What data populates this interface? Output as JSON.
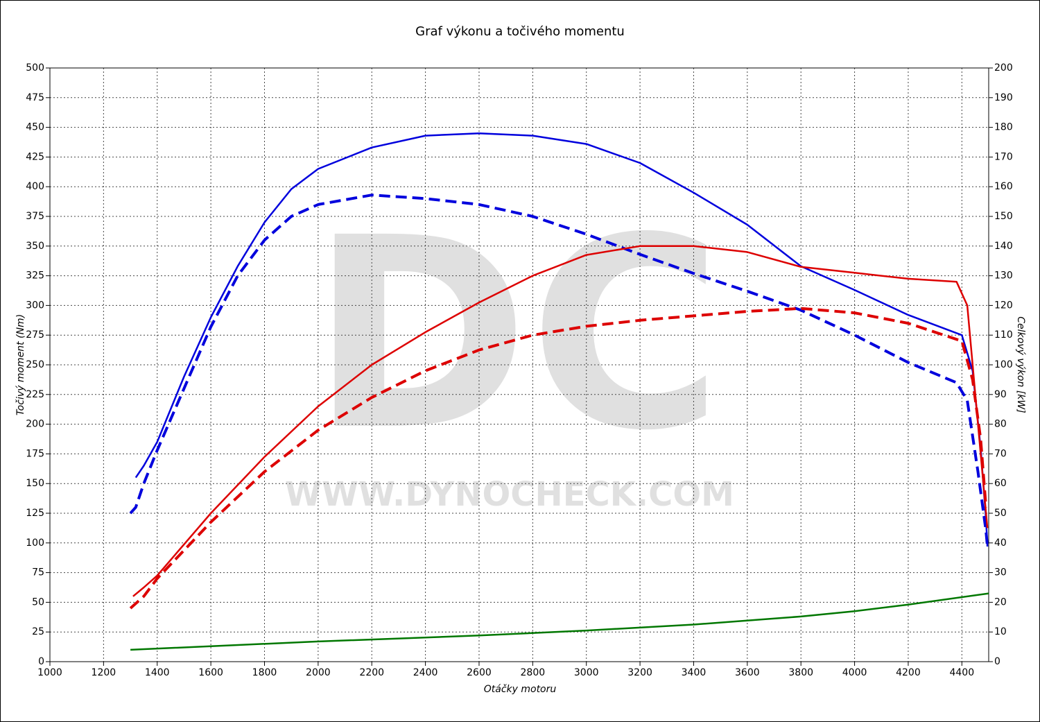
{
  "chart_data": {
    "type": "line",
    "title": "Graf výkonu a točivého momentu",
    "xlabel": "Otáčky motoru",
    "ylabel": "Točivý moment (Nm)",
    "y2label": "Celkový výkon [kW]",
    "watermark": "DC",
    "watermark_url": "WWW.DYNOCHECK.COM",
    "xlim": [
      1000,
      4500
    ],
    "xticks": [
      1000,
      1200,
      1400,
      1600,
      1800,
      2000,
      2200,
      2400,
      2600,
      2800,
      3000,
      3200,
      3400,
      3600,
      3800,
      4000,
      4200,
      4400
    ],
    "ylim": [
      0,
      500
    ],
    "yticks": [
      0,
      25,
      50,
      75,
      100,
      125,
      150,
      175,
      200,
      225,
      250,
      275,
      300,
      325,
      350,
      375,
      400,
      425,
      450,
      475,
      500
    ],
    "y2lim": [
      0,
      200
    ],
    "y2ticks": [
      0,
      10,
      20,
      30,
      40,
      50,
      60,
      70,
      80,
      90,
      100,
      110,
      120,
      130,
      140,
      150,
      160,
      170,
      180,
      190,
      200
    ],
    "grid": true,
    "series": [
      {
        "color": "#0000dd",
        "dash": false,
        "x": [
          1320,
          1350,
          1400,
          1500,
          1600,
          1700,
          1800,
          1900,
          2000,
          2200,
          2400,
          2600,
          2800,
          3000,
          3200,
          3400,
          3600,
          3800,
          4000,
          4200,
          4400,
          4440,
          4470,
          4490,
          4495
        ],
        "values": [
          155,
          165,
          185,
          240,
          290,
          333,
          370,
          398,
          415,
          433,
          443,
          445,
          443,
          436,
          420,
          395,
          368,
          333,
          313,
          292,
          275,
          245,
          180,
          120,
          97
        ]
      },
      {
        "color": "#0000dd",
        "dash": true,
        "x": [
          1300,
          1320,
          1350,
          1400,
          1500,
          1600,
          1700,
          1800,
          1900,
          2000,
          2200,
          2400,
          2600,
          2800,
          3000,
          3200,
          3400,
          3600,
          3800,
          4000,
          4200,
          4380,
          4420,
          4460,
          4490,
          4495
        ],
        "values": [
          125,
          130,
          150,
          178,
          230,
          282,
          325,
          355,
          375,
          385,
          393,
          390,
          385,
          375,
          360,
          343,
          327,
          312,
          296,
          275,
          252,
          235,
          220,
          160,
          110,
          97
        ]
      },
      {
        "color": "#dd0000",
        "dash": false,
        "axis": "y2",
        "x": [
          1310,
          1350,
          1400,
          1600,
          1800,
          2000,
          2200,
          2400,
          2600,
          2800,
          3000,
          3200,
          3400,
          3600,
          3800,
          4000,
          4200,
          4380,
          4420,
          4450,
          4480,
          4495
        ],
        "values": [
          22,
          25,
          29,
          50,
          69,
          86,
          100,
          111,
          121,
          130,
          137,
          140,
          140,
          138,
          133,
          131,
          129,
          128,
          120,
          90,
          60,
          45
        ]
      },
      {
        "color": "#dd0000",
        "dash": true,
        "axis": "y2",
        "x": [
          1300,
          1350,
          1400,
          1600,
          1800,
          2000,
          2200,
          2400,
          2600,
          2800,
          3000,
          3200,
          3400,
          3600,
          3800,
          4000,
          4200,
          4400,
          4440,
          4470,
          4490
        ],
        "values": [
          18,
          22,
          28,
          47,
          64,
          78,
          89,
          98,
          105,
          110,
          113,
          115,
          116.5,
          118,
          119,
          117.5,
          114,
          108,
          95,
          75,
          52
        ]
      },
      {
        "color": "#007700",
        "dash": false,
        "axis": "y2",
        "x": [
          1300,
          2000,
          2600,
          3000,
          3400,
          3800,
          4000,
          4200,
          4500
        ],
        "values": [
          4,
          6.8,
          8.8,
          10.5,
          12.5,
          15.2,
          17,
          19.2,
          23
        ]
      }
    ]
  }
}
